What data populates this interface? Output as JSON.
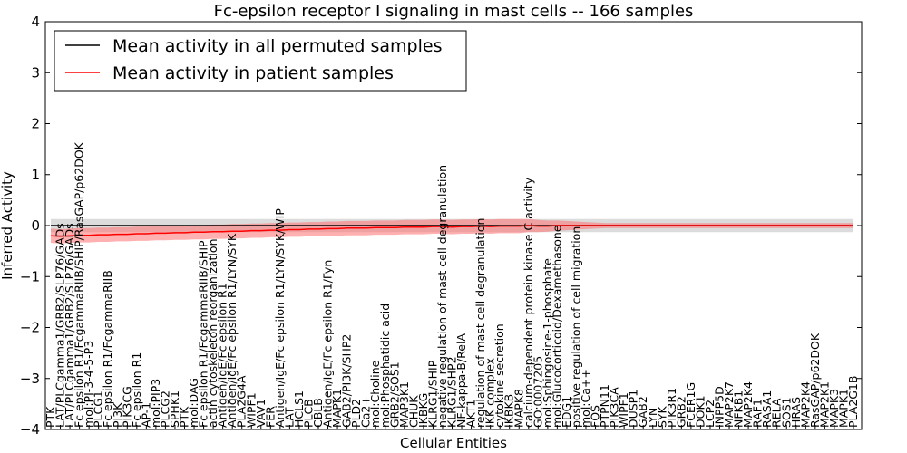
{
  "chart_data": {
    "type": "line",
    "title": "Fc-epsilon receptor I signaling in mast cells -- 166 samples",
    "xlabel": "Cellular Entities",
    "ylabel": "Inferred Activity",
    "ylim": [
      -4,
      4
    ],
    "yticks": [
      "4",
      "3",
      "2",
      "1",
      "0",
      "−1",
      "−2",
      "−3",
      "−4"
    ],
    "grid": false,
    "legend_position": "top-left",
    "colors": {
      "permuted": "#000000",
      "patient": "#ff0000",
      "permuted_band": "#c0c0c0",
      "patient_band": "#ff7070"
    },
    "categories": [
      "PTK",
      "LAT/PLCgamma1/GRB2/SLP76/GADs",
      "LAT/PLCgamma1/GRB2/SLP76/GADs",
      "Fc epsilon R1/FcgammaRIIB/SHIP/RasGAP/p62DOK",
      "mol:PI-3-4-5-P3",
      "PLCG1",
      "Fc epsilon R1/FcgammaRIIB",
      "PI3K",
      "PIK3CG",
      "Fc epsilon R1",
      "AP-1",
      "mol:PIP3",
      "PLCG2",
      "SPHK1",
      "PTK",
      "mol:DAG",
      "Fc epsilon R1/FcgammaRIIB/SHIP",
      "actin cytoskeleton reorganization",
      "Antigen/IgE/Fc epsilon R1",
      "Antigen/IgE/Fc epsilon R1/LYN/SYK",
      "PLA2G4A",
      "WIPF1",
      "VAV1",
      "FER",
      "Antigen/IgE/Fc epsilon R1/LYN/SYK/WIP",
      "LAT",
      "HCLS1",
      "PLCB",
      "CBLB",
      "Antigen/IgE/Fc epsilon R1/Fyn",
      "MAPK1",
      "GAB2/PI3K/SHP2",
      "PLD2",
      "Ca2+",
      "mol:Choline",
      "mol:Phosphatidic acid",
      "GRB2/SOS1",
      "MAP3K1",
      "CHUK",
      "IKBKG",
      "KLRG1/SHIP",
      "negative regulation of mast cell degranulation",
      "KLRG1/SHP2",
      "NF-kappa-B/RelA",
      "AKT1",
      "regulation of mast cell degranulation",
      "IKK complex",
      "cytokine secretion",
      "IKBKB",
      "MAPK8",
      "calcium-dependent protein kinase C activity",
      "GO:0007205",
      "mol:Sphingosine-1-phosphate",
      "mol:Glucocorticoid/Dexamethasone",
      "EDG1",
      "positive regulation of cell migration",
      "mol:Ca++",
      "FOS",
      "PTPN11",
      "PIK3CA",
      "WIPF1",
      "DUSP1",
      "GAB2",
      "LYN",
      "SYK",
      "PIK3R1",
      "GRB2",
      "FCER1G",
      "DOK1",
      "LCP2",
      "INPP5D",
      "MAP2K7",
      "NFKB1",
      "MAP2K4",
      "RAF1",
      "RASA1",
      "RELA",
      "SOS1",
      "HRAS",
      "MAP2K4",
      "RasGAP/p62DOK",
      "MAP2K1",
      "MAPK3",
      "MAPK1",
      "PLA2G1B"
    ],
    "series": [
      {
        "name": "Mean activity in all permuted samples",
        "values": [
          0,
          0,
          0,
          0,
          0,
          0,
          0,
          0,
          0,
          0,
          0,
          0,
          0,
          0,
          0,
          0,
          0,
          0,
          0,
          0,
          0,
          0,
          0,
          0,
          0,
          0,
          0,
          0,
          0,
          0,
          0,
          0,
          0,
          0,
          0,
          0,
          0,
          0,
          0,
          0,
          0,
          0,
          0,
          0,
          0,
          0,
          0,
          0,
          0,
          0,
          0,
          0,
          0,
          0,
          0,
          0,
          0,
          0,
          0,
          0,
          0,
          0,
          0,
          0,
          0,
          0,
          0,
          0,
          0,
          0,
          0,
          0,
          0,
          0,
          0,
          0,
          0,
          0,
          0,
          0,
          0,
          0,
          0,
          0,
          0
        ],
        "band": [
          0.13,
          0.13,
          0.13,
          0.13,
          0.13,
          0.13,
          0.13,
          0.13,
          0.13,
          0.13,
          0.13,
          0.13,
          0.13,
          0.13,
          0.13,
          0.13,
          0.13,
          0.13,
          0.13,
          0.13,
          0.13,
          0.13,
          0.13,
          0.13,
          0.13,
          0.13,
          0.13,
          0.13,
          0.13,
          0.13,
          0.13,
          0.13,
          0.13,
          0.13,
          0.13,
          0.13,
          0.13,
          0.13,
          0.13,
          0.13,
          0.13,
          0.13,
          0.13,
          0.13,
          0.13,
          0.13,
          0.13,
          0.13,
          0.13,
          0.13,
          0.13,
          0.13,
          0.13,
          0.13,
          0.13,
          0.13,
          0.13,
          0.13,
          0.13,
          0.13,
          0.13,
          0.13,
          0.13,
          0.13,
          0.13,
          0.13,
          0.13,
          0.13,
          0.13,
          0.13,
          0.13,
          0.13,
          0.13,
          0.13,
          0.13,
          0.13,
          0.13,
          0.13,
          0.13,
          0.13,
          0.13,
          0.13,
          0.13,
          0.13,
          0.13
        ]
      },
      {
        "name": "Mean activity in patient samples",
        "values": [
          -0.2,
          -0.21,
          -0.2,
          -0.19,
          -0.19,
          -0.18,
          -0.18,
          -0.17,
          -0.17,
          -0.16,
          -0.16,
          -0.15,
          -0.15,
          -0.14,
          -0.14,
          -0.13,
          -0.13,
          -0.12,
          -0.12,
          -0.11,
          -0.11,
          -0.1,
          -0.1,
          -0.09,
          -0.09,
          -0.08,
          -0.08,
          -0.07,
          -0.07,
          -0.06,
          -0.06,
          -0.05,
          -0.05,
          -0.05,
          -0.04,
          -0.04,
          -0.04,
          -0.03,
          -0.03,
          -0.03,
          -0.02,
          -0.02,
          -0.03,
          -0.02,
          -0.02,
          -0.01,
          -0.02,
          -0.01,
          -0.01,
          -0.01,
          0,
          -0.01,
          -0.01,
          0,
          0,
          0,
          0,
          0,
          0,
          0,
          0,
          0,
          0,
          0,
          0,
          0,
          0,
          0,
          0,
          0,
          0,
          0,
          0,
          0,
          0,
          0,
          0,
          0,
          0,
          0,
          0,
          0,
          0,
          0,
          0
        ],
        "band": [
          0.14,
          0.14,
          0.14,
          0.14,
          0.14,
          0.14,
          0.14,
          0.14,
          0.14,
          0.14,
          0.14,
          0.14,
          0.14,
          0.14,
          0.14,
          0.14,
          0.14,
          0.14,
          0.14,
          0.14,
          0.14,
          0.14,
          0.14,
          0.14,
          0.14,
          0.14,
          0.14,
          0.14,
          0.14,
          0.14,
          0.14,
          0.14,
          0.14,
          0.14,
          0.14,
          0.14,
          0.14,
          0.14,
          0.14,
          0.14,
          0.14,
          0.14,
          0.14,
          0.14,
          0.14,
          0.14,
          0.14,
          0.14,
          0.14,
          0.14,
          0.13,
          0.12,
          0.11,
          0.1,
          0.09,
          0.08,
          0.07,
          0.06,
          0.05,
          0.05,
          0.05,
          0.05,
          0.05,
          0.05,
          0.05,
          0.05,
          0.05,
          0.05,
          0.05,
          0.05,
          0.05,
          0.05,
          0.05,
          0.05,
          0.05,
          0.05,
          0.05,
          0.05,
          0.05,
          0.05,
          0.05,
          0.05,
          0.05,
          0.05,
          0.05
        ]
      }
    ]
  }
}
